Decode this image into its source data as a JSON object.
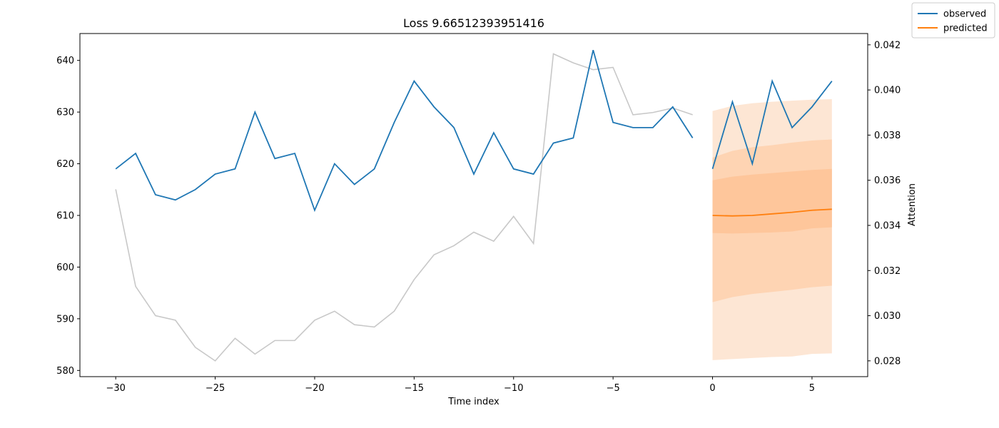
{
  "chart_data": {
    "type": "line",
    "title": "Loss 9.66512393951416",
    "xlabel": "Time index",
    "ylabel_right": "Attention",
    "xlim": [
      -31.8,
      7.8
    ],
    "ylim_left": [
      578.8,
      645.2
    ],
    "ylim_right": [
      0.0273,
      0.0425
    ],
    "xticks": [
      -30,
      -25,
      -20,
      -15,
      -10,
      -5,
      0,
      5
    ],
    "xtick_labels": [
      "−30",
      "−25",
      "−20",
      "−15",
      "−10",
      "−5",
      "0",
      "5"
    ],
    "yticks_left": [
      580,
      590,
      600,
      610,
      620,
      630,
      640
    ],
    "yticks_right": [
      0.028,
      0.03,
      0.032,
      0.034,
      0.036,
      0.038,
      0.04,
      0.042
    ],
    "ytick_labels_right": [
      "0.028",
      "0.030",
      "0.032",
      "0.034",
      "0.036",
      "0.038",
      "0.040",
      "0.042"
    ],
    "legend": {
      "position": "top-right",
      "entries": [
        {
          "label": "observed",
          "color": "#1f77b4"
        },
        {
          "label": "predicted",
          "color": "#ff7f0e"
        }
      ]
    },
    "observed_history": {
      "color": "#1f77b4",
      "x": [
        -30,
        -29,
        -28,
        -27,
        -26,
        -25,
        -24,
        -23,
        -22,
        -21,
        -20,
        -19,
        -18,
        -17,
        -16,
        -15,
        -14,
        -13,
        -12,
        -11,
        -10,
        -9,
        -8,
        -7,
        -6,
        -5,
        -4,
        -3,
        -2,
        -1
      ],
      "y": [
        619,
        622,
        614,
        613,
        615,
        618,
        619,
        630,
        621,
        622,
        611,
        620,
        616,
        619,
        628,
        636,
        631,
        627,
        618,
        626,
        619,
        618,
        624,
        625,
        642,
        628,
        627,
        627,
        631,
        625
      ]
    },
    "observed_future": {
      "color": "#1f77b4",
      "x": [
        0,
        1,
        2,
        3,
        4,
        5,
        6
      ],
      "y": [
        619,
        632,
        620,
        636,
        627,
        631,
        636
      ]
    },
    "attention": {
      "color": "#c8c8c8",
      "axis": "right",
      "x": [
        -30,
        -29,
        -28,
        -27,
        -26,
        -25,
        -24,
        -23,
        -22,
        -21,
        -20,
        -19,
        -18,
        -17,
        -16,
        -15,
        -14,
        -13,
        -12,
        -11,
        -10,
        -9,
        -8,
        -7,
        -6,
        -5,
        -4,
        -3,
        -2,
        -1
      ],
      "y": [
        0.0356,
        0.0313,
        0.03,
        0.0298,
        0.0286,
        0.028,
        0.029,
        0.0283,
        0.0289,
        0.0289,
        0.0298,
        0.0302,
        0.0296,
        0.0295,
        0.0302,
        0.0316,
        0.0327,
        0.0331,
        0.0337,
        0.0333,
        0.0344,
        0.0332,
        0.0416,
        0.0412,
        0.0409,
        0.041,
        0.0389,
        0.039,
        0.0392,
        0.0389
      ]
    },
    "prediction": {
      "color": "#ff7f0e",
      "x": [
        0,
        1,
        2,
        3,
        4,
        5,
        6
      ],
      "median": [
        610.0,
        609.9,
        610.0,
        610.3,
        610.6,
        611.0,
        611.2
      ],
      "bands": [
        {
          "color": "#fde6d4",
          "lower": [
            582.0,
            582.2,
            582.4,
            582.6,
            582.7,
            583.2,
            583.3
          ],
          "upper": [
            630.2,
            631.2,
            631.7,
            632.0,
            632.2,
            632.4,
            632.5
          ]
        },
        {
          "color": "#fed4b3",
          "lower": [
            593.2,
            594.2,
            594.8,
            595.2,
            595.6,
            596.1,
            596.4
          ],
          "upper": [
            621.2,
            622.5,
            623.2,
            623.6,
            624.1,
            624.5,
            624.7
          ]
        },
        {
          "color": "#fec69b",
          "lower": [
            606.6,
            606.5,
            606.6,
            606.7,
            606.9,
            607.5,
            607.7
          ],
          "upper": [
            616.8,
            617.5,
            617.9,
            618.2,
            618.5,
            618.8,
            619.0
          ]
        }
      ]
    }
  }
}
